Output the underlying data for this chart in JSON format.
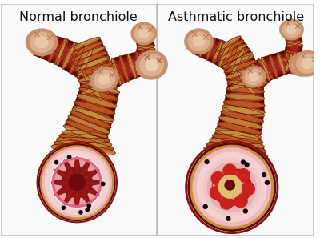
{
  "title_left": "Normal bronchiole",
  "title_right": "Asthmatic bronchiole",
  "bg_color": "#ffffff",
  "title_fontsize": 11.5,
  "fig_width": 4.0,
  "fig_height": 2.97,
  "dpi": 100,
  "colors": {
    "muscle_outer": "#8B1010",
    "muscle_mid": "#A52020",
    "muscle_stripe": "#C06020",
    "muscle_highlight": "#D4824A",
    "muscle_gold": "#C8903A",
    "muscle_dark": "#5C0808",
    "inner_wall_outer": "#F0B8B8",
    "inner_wall_pink": "#F5D0D0",
    "inner_wall_light": "#FDE8E8",
    "mucosa_dark": "#8B1515",
    "mucosa_fold": "#A01818",
    "airway_center": "#6B0A0A",
    "mucus_tan": "#C8A050",
    "mucus_light": "#DFC070",
    "inflamed_red": "#B81818",
    "inflamed_bright": "#CC2020",
    "node_tan": "#C8906A",
    "node_pink": "#DDB090",
    "node_highlight": "#EED0B0",
    "black_dot": "#0A0A0A",
    "panel_bg": "#FAFAFA",
    "panel_border": "#CCCCCC",
    "divider": "#BBBBBB",
    "text_color": "#111111"
  }
}
